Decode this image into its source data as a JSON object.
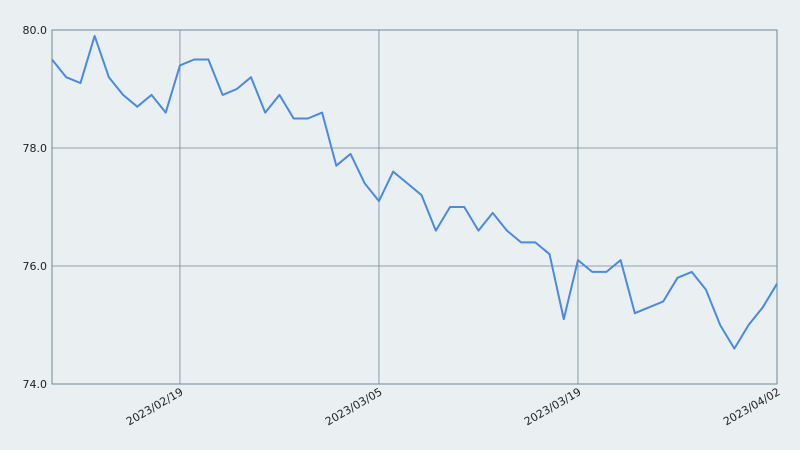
{
  "chart_data": {
    "type": "line",
    "x": [
      "2023/02/10",
      "2023/02/11",
      "2023/02/12",
      "2023/02/13",
      "2023/02/14",
      "2023/02/15",
      "2023/02/16",
      "2023/02/17",
      "2023/02/18",
      "2023/02/19",
      "2023/02/20",
      "2023/02/21",
      "2023/02/22",
      "2023/02/23",
      "2023/02/24",
      "2023/02/25",
      "2023/02/26",
      "2023/02/27",
      "2023/02/28",
      "2023/03/01",
      "2023/03/02",
      "2023/03/03",
      "2023/03/04",
      "2023/03/05",
      "2023/03/06",
      "2023/03/07",
      "2023/03/08",
      "2023/03/09",
      "2023/03/10",
      "2023/03/11",
      "2023/03/12",
      "2023/03/13",
      "2023/03/14",
      "2023/03/15",
      "2023/03/16",
      "2023/03/17",
      "2023/03/18",
      "2023/03/19",
      "2023/03/20",
      "2023/03/21",
      "2023/03/22",
      "2023/03/23",
      "2023/03/24",
      "2023/03/25",
      "2023/03/26",
      "2023/03/27",
      "2023/03/28",
      "2023/03/29",
      "2023/03/30",
      "2023/03/31",
      "2023/04/01",
      "2023/04/02"
    ],
    "series": [
      {
        "color": "#4a89e6",
        "values": [
          79.5,
          79.2,
          79.1,
          79.9,
          79.2,
          78.9,
          78.7,
          78.9,
          78.6,
          79.4,
          79.5,
          79.5,
          78.9,
          79.0,
          79.2,
          78.6,
          78.9,
          78.5,
          78.5,
          78.6,
          77.7,
          77.9,
          77.4,
          77.1,
          77.6,
          77.4,
          77.2,
          76.6,
          77.0,
          77.0,
          76.6,
          76.9,
          76.6,
          76.4,
          76.4,
          76.2,
          75.1,
          76.1,
          75.9,
          75.9,
          76.1,
          75.2,
          75.3,
          75.4,
          75.8,
          75.9,
          75.6,
          75.0,
          74.6,
          75.0,
          75.3,
          75.7
        ]
      }
    ],
    "xlim": [
      "2023/02/10",
      "2023/04/02"
    ],
    "xticks": [
      "2023/02/19",
      "2023/03/05",
      "2023/03/19",
      "2023/04/02"
    ],
    "ylim": [
      74,
      80
    ],
    "yticks": [
      {
        "value": 74,
        "label": "74.0"
      },
      {
        "value": 76,
        "label": "76.0"
      },
      {
        "value": 78,
        "label": "78.0"
      },
      {
        "value": 80,
        "label": "80.0"
      }
    ],
    "grid": true
  }
}
